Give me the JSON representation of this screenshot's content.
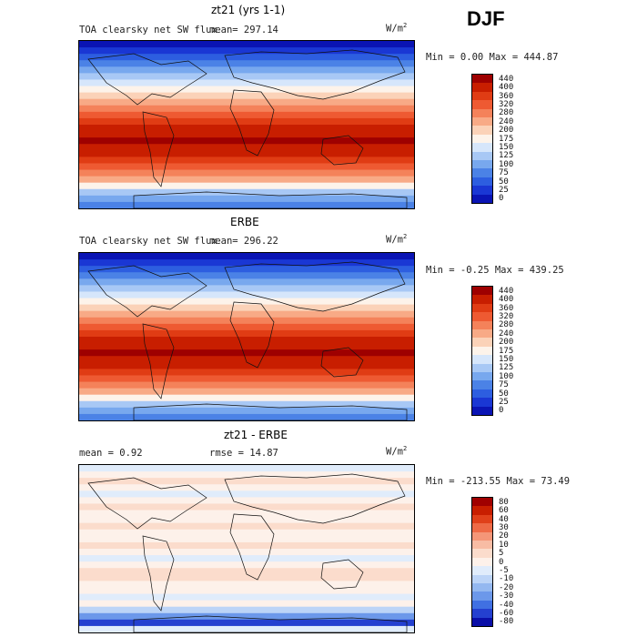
{
  "season": "DJF",
  "unit_label": "W/m",
  "unit_sup": "2",
  "panels": [
    {
      "title": "zt21 (yrs 1-1)",
      "subtitle": "TOA clearsky net SW flux",
      "stat1": "mean= 297.14",
      "minmax": "Min =    0.00 Max = 444.87",
      "levels": [
        "440",
        "400",
        "360",
        "320",
        "280",
        "240",
        "200",
        "175",
        "150",
        "125",
        "100",
        "75",
        "50",
        "25",
        "0"
      ],
      "colors": [
        "#9e0000",
        "#c81e00",
        "#e03c14",
        "#ee5a32",
        "#f4825a",
        "#f8aa86",
        "#fbd2b8",
        "#fdf3ea",
        "#d6e6fb",
        "#a8c8f5",
        "#78a8ee",
        "#4b82e6",
        "#2d5ee0",
        "#1a37d4",
        "#0a14b4"
      ]
    },
    {
      "title": "ERBE",
      "subtitle": "TOA clearsky net SW flux",
      "stat1": "mean= 296.22",
      "minmax": "Min =  -0.25 Max = 439.25",
      "levels": [
        "440",
        "400",
        "360",
        "320",
        "280",
        "240",
        "200",
        "175",
        "150",
        "125",
        "100",
        "75",
        "50",
        "25",
        "0"
      ],
      "colors": [
        "#9e0000",
        "#c81e00",
        "#e03c14",
        "#ee5a32",
        "#f4825a",
        "#f8aa86",
        "#fbd2b8",
        "#fdf3ea",
        "#d6e6fb",
        "#a8c8f5",
        "#78a8ee",
        "#4b82e6",
        "#2d5ee0",
        "#1a37d4",
        "#0a14b4"
      ]
    },
    {
      "title": "zt21 - ERBE",
      "stat1": "mean =    0.92",
      "stat2": "rmse =   14.87",
      "minmax": "Min = -213.55 Max =  73.49",
      "levels": [
        "80",
        "60",
        "40",
        "30",
        "20",
        "10",
        "5",
        "0",
        "-5",
        "-10",
        "-20",
        "-30",
        "-40",
        "-60",
        "-80"
      ],
      "colors": [
        "#a00000",
        "#c81e00",
        "#e0401a",
        "#ee6a46",
        "#f49678",
        "#f8bca4",
        "#fbdccc",
        "#fdf1ea",
        "#e0ecfb",
        "#bcd4f7",
        "#94b8f0",
        "#6c98ea",
        "#4070e2",
        "#2440d0",
        "#0a0ea8"
      ]
    }
  ]
}
